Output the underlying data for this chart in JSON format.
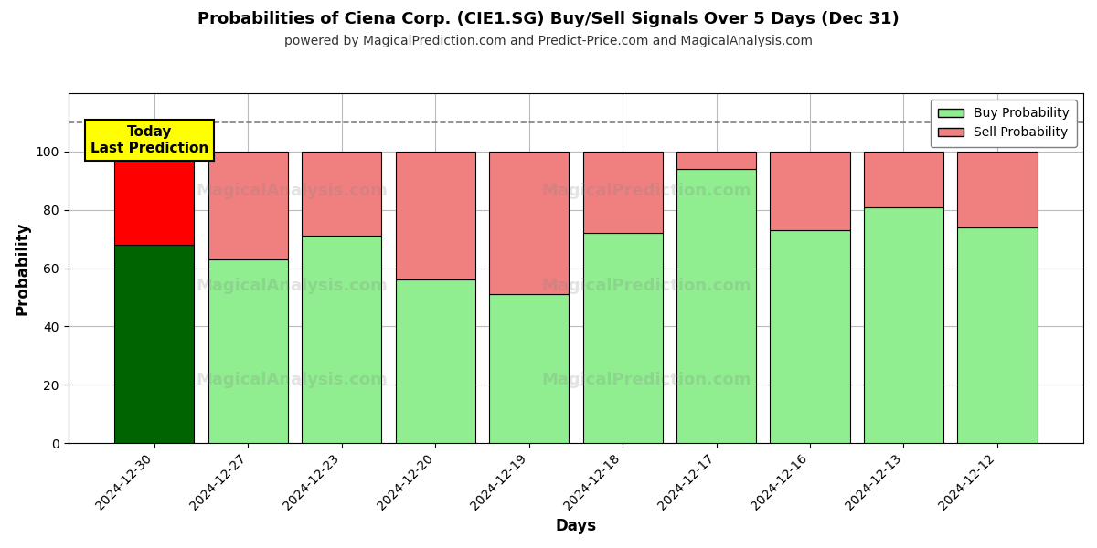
{
  "title": "Probabilities of Ciena Corp. (CIE1.SG) Buy/Sell Signals Over 5 Days (Dec 31)",
  "subtitle": "powered by MagicalPrediction.com and Predict-Price.com and MagicalAnalysis.com",
  "xlabel": "Days",
  "ylabel": "Probability",
  "dates": [
    "2024-12-30",
    "2024-12-27",
    "2024-12-23",
    "2024-12-20",
    "2024-12-19",
    "2024-12-18",
    "2024-12-17",
    "2024-12-16",
    "2024-12-13",
    "2024-12-12"
  ],
  "buy_values": [
    68,
    63,
    71,
    56,
    51,
    72,
    94,
    73,
    81,
    74
  ],
  "sell_values": [
    32,
    37,
    29,
    44,
    49,
    28,
    6,
    27,
    19,
    26
  ],
  "today_buy_color": "#006400",
  "today_sell_color": "#ff0000",
  "buy_color": "#90ee90",
  "sell_color": "#f08080",
  "bar_edge_color": "#000000",
  "annotation_text": "Today\nLast Prediction",
  "annotation_bg_color": "#ffff00",
  "legend_buy_label": "Buy Probability",
  "legend_sell_label": "Sell Probability",
  "ylim": [
    0,
    120
  ],
  "yticks": [
    0,
    20,
    40,
    60,
    80,
    100
  ],
  "dashed_line_y": 110,
  "background_color": "#ffffff",
  "grid_color": "#bbbbbb",
  "title_fontsize": 13,
  "subtitle_fontsize": 10,
  "axis_label_fontsize": 12,
  "tick_fontsize": 10
}
